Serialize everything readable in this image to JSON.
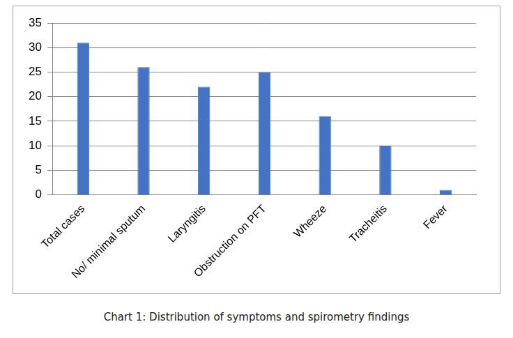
{
  "chart_data": {
    "type": "bar",
    "title": "Chart 1: Distribution of symptoms and spirometry findings",
    "categories": [
      "Total cases",
      "No/ minimal sputum",
      "Laryngitis",
      "Obstruction on PFT",
      "Wheeze",
      "Tracheitis",
      "Fever"
    ],
    "values": [
      31,
      26,
      22,
      25,
      16,
      10,
      1
    ],
    "color": "#4472c4",
    "ylim": [
      0,
      35
    ],
    "yticks": [
      0,
      5,
      10,
      15,
      20,
      25,
      30,
      35
    ],
    "grid": true
  }
}
